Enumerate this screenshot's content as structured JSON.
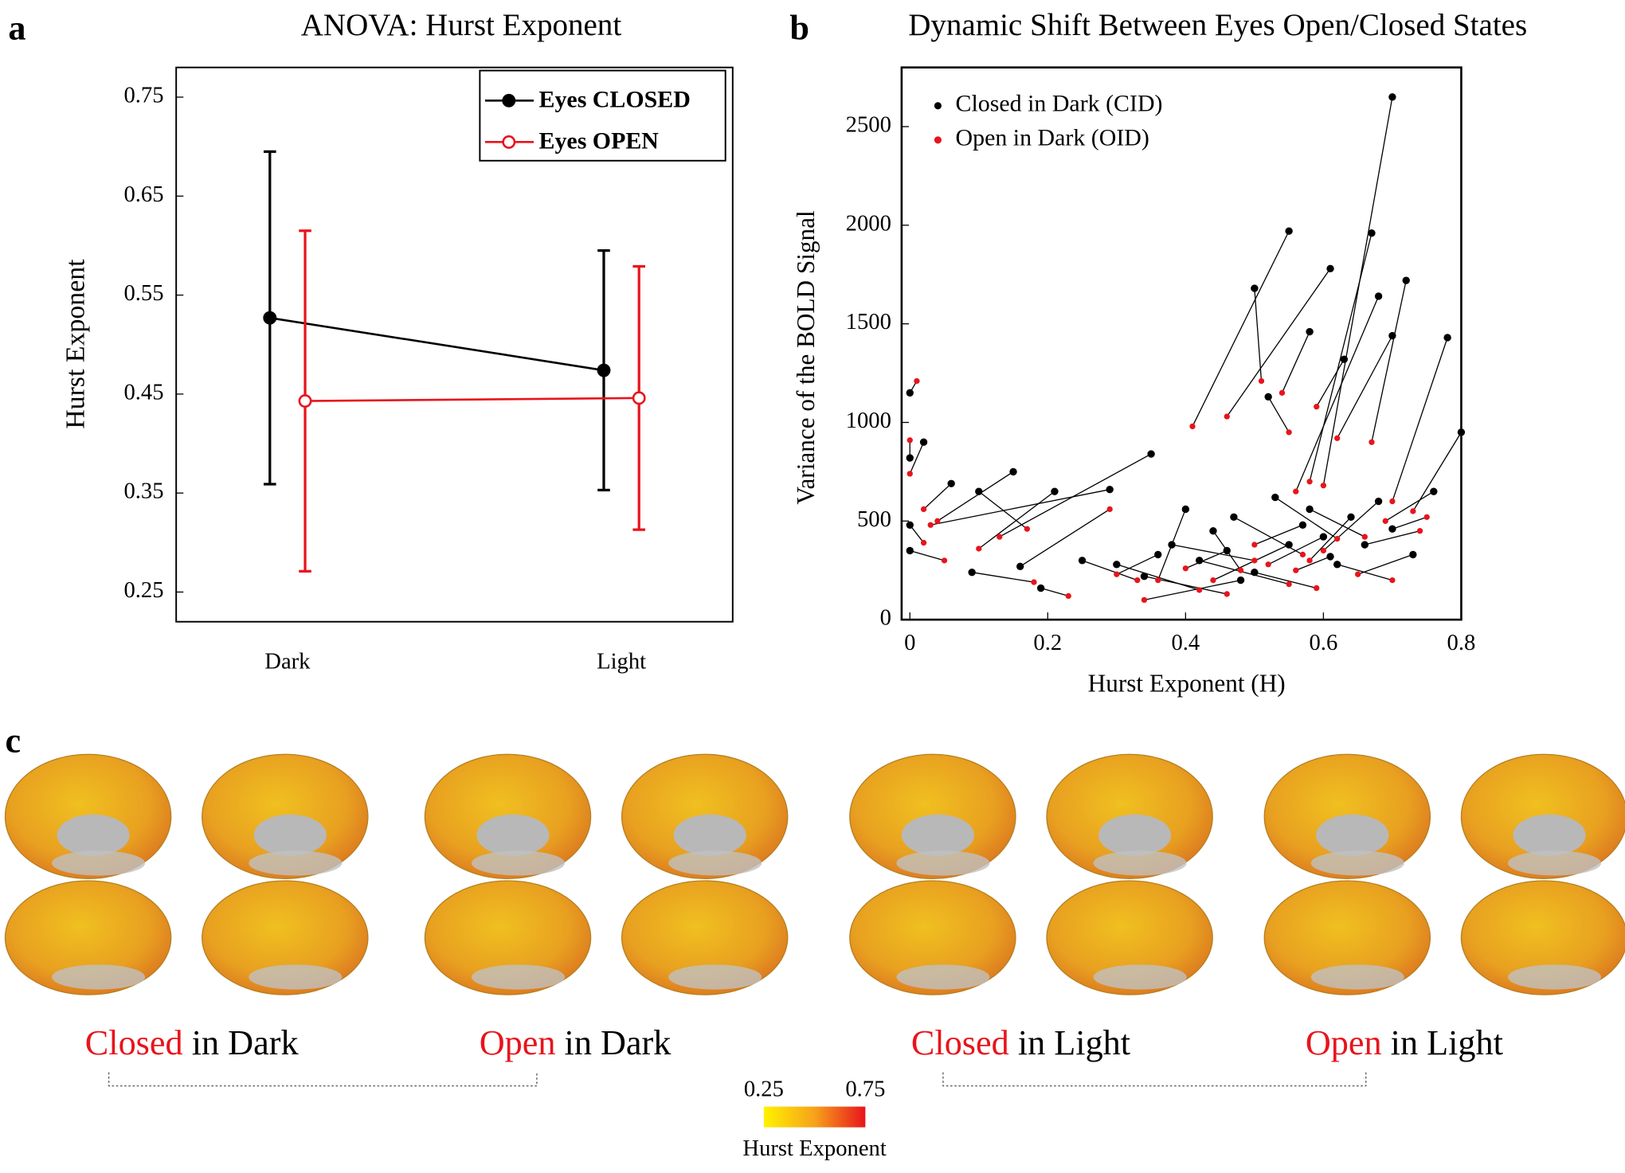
{
  "panel_labels": [
    "a",
    "b",
    "c"
  ],
  "chart_data": [
    {
      "type": "line",
      "title": "ANOVA: Hurst Exponent",
      "y_label": "Hurst Exponent",
      "categories": [
        "Dark",
        "Light"
      ],
      "series": [
        {
          "name": "Eyes CLOSED",
          "color": "#000000",
          "marker": "filled",
          "values": [
            0.527,
            0.474
          ],
          "errors": [
            0.168,
            0.121
          ]
        },
        {
          "name": "Eyes OPEN",
          "color": "#e8141c",
          "marker": "open",
          "values": [
            0.443,
            0.446
          ],
          "errors": [
            0.172,
            0.133
          ]
        }
      ],
      "ylim": [
        0.22,
        0.78
      ],
      "yticks": [
        0.25,
        0.35,
        0.45,
        0.55,
        0.65,
        0.75
      ],
      "legend": "upper right"
    },
    {
      "type": "scatter",
      "title": "Dynamic Shift Between Eyes Open/Closed States",
      "x_label": "Hurst Exponent (H)",
      "y_label": "Variance of the BOLD Signal",
      "series": [
        {
          "name": "Closed in Dark (CID)",
          "color": "#000000",
          "x": [
            0.7,
            0.55,
            0.67,
            0.61,
            0.72,
            0.5,
            0.68,
            0.7,
            0.78,
            0.58,
            0.52,
            0.63,
            0.35,
            0.0,
            0.0,
            0.02,
            0.15,
            0.06,
            0.1,
            0.29,
            0.21,
            0.0,
            0.0,
            0.09,
            0.16,
            0.19,
            0.25,
            0.3,
            0.34,
            0.38,
            0.42,
            0.44,
            0.47,
            0.5,
            0.53,
            0.55,
            0.58,
            0.6,
            0.62,
            0.64,
            0.66,
            0.68,
            0.7,
            0.73,
            0.76,
            0.4,
            0.36,
            0.46,
            0.57,
            0.61,
            0.8,
            0.48
          ],
          "values": [
            2650,
            1970,
            1960,
            1780,
            1720,
            1680,
            1640,
            1440,
            1430,
            1460,
            1130,
            1320,
            840,
            1150,
            820,
            900,
            750,
            690,
            650,
            660,
            650,
            480,
            350,
            240,
            270,
            160,
            300,
            280,
            220,
            380,
            300,
            450,
            520,
            240,
            620,
            380,
            560,
            420,
            280,
            520,
            380,
            600,
            460,
            330,
            650,
            560,
            330,
            350,
            480,
            320,
            950,
            200
          ]
        },
        {
          "name": "Open in Dark (OID)",
          "color": "#e8141c",
          "x": [
            0.6,
            0.41,
            0.58,
            0.46,
            0.67,
            0.51,
            0.56,
            0.62,
            0.7,
            0.54,
            0.55,
            0.59,
            0.13,
            0.01,
            0.0,
            0.0,
            0.04,
            0.02,
            0.17,
            0.03,
            0.1,
            0.02,
            0.05,
            0.18,
            0.29,
            0.23,
            0.33,
            0.42,
            0.46,
            0.5,
            0.55,
            0.48,
            0.57,
            0.59,
            0.62,
            0.44,
            0.66,
            0.52,
            0.7,
            0.58,
            0.74,
            0.6,
            0.75,
            0.65,
            0.69,
            0.36,
            0.3,
            0.4,
            0.5,
            0.56,
            0.73,
            0.34
          ],
          "values": [
            680,
            980,
            700,
            1030,
            900,
            1210,
            650,
            920,
            600,
            1150,
            950,
            1080,
            420,
            1210,
            910,
            740,
            500,
            560,
            460,
            480,
            360,
            390,
            300,
            190,
            560,
            120,
            200,
            150,
            130,
            300,
            180,
            250,
            330,
            160,
            410,
            200,
            420,
            280,
            200,
            300,
            450,
            350,
            520,
            230,
            500,
            200,
            230,
            260,
            380,
            250,
            550,
            100
          ]
        }
      ],
      "connect_pairs": true,
      "xlim": [
        -0.012,
        0.8
      ],
      "xticks": [
        0,
        0.2,
        0.4,
        0.6,
        0.8
      ],
      "ylim": [
        0,
        2800
      ],
      "yticks": [
        0,
        500,
        1000,
        1500,
        2000,
        2500
      ],
      "legend": "upper left"
    }
  ],
  "brain_maps": {
    "labels": [
      {
        "state": "Closed",
        "rest": "in Dark"
      },
      {
        "state": "Open",
        "rest": "in Dark"
      },
      {
        "state": "Closed",
        "rest": "in Light"
      },
      {
        "state": "Open",
        "rest": "in Light"
      }
    ],
    "colorbar": {
      "range": [
        0.25,
        0.75
      ],
      "title": "Hurst Exponent"
    }
  }
}
